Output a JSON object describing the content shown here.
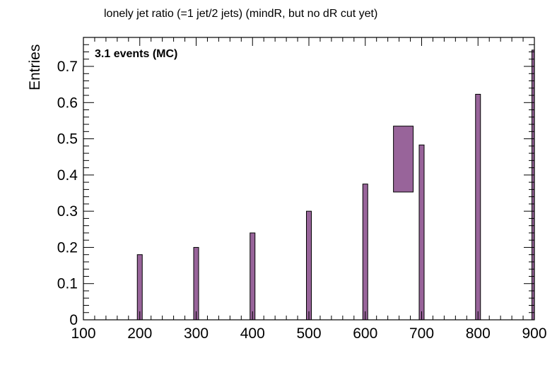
{
  "chart_data": {
    "type": "bar",
    "title": "lonely jet ratio (=1 jet/2 jets) (mindR, but no dR cut yet)",
    "xlabel": "",
    "ylabel": "Entries",
    "annotation": "3.1 events (MC)",
    "xlim": [
      100,
      900
    ],
    "ylim": [
      0,
      0.78
    ],
    "x_ticks": [
      "100",
      "200",
      "300",
      "400",
      "500",
      "600",
      "700",
      "800",
      "900"
    ],
    "y_ticks": [
      "0",
      "0.1",
      "0.2",
      "0.3",
      "0.4",
      "0.5",
      "0.6",
      "0.7"
    ],
    "grid": false,
    "bar_color": "#98649a",
    "series": [
      {
        "bars": [
          {
            "x": 200,
            "value": 0.18
          },
          {
            "x": 300,
            "value": 0.2
          },
          {
            "x": 400,
            "value": 0.24
          },
          {
            "x": 500,
            "value": 0.3
          },
          {
            "x": 600,
            "value": 0.375
          },
          {
            "x": 700,
            "value": 0.483
          },
          {
            "x": 800,
            "value": 0.623
          },
          {
            "x": 900,
            "value": 0.745
          }
        ],
        "boxes": [
          {
            "x_from": 650,
            "x_to": 685,
            "y_from": 0.353,
            "y_to": 0.535
          }
        ]
      }
    ]
  }
}
